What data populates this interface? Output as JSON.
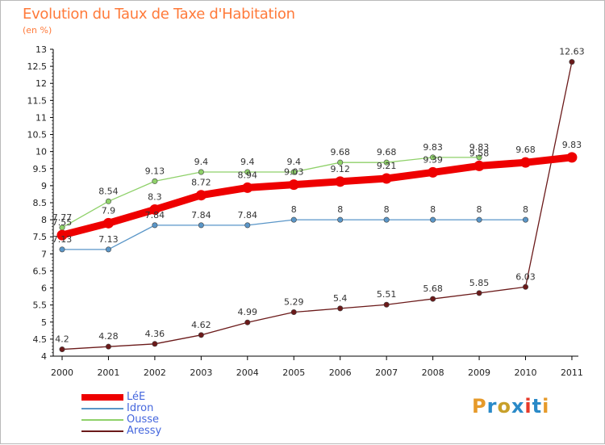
{
  "chart_data": {
    "type": "line",
    "title": "Evolution du Taux de Taxe d'Habitation",
    "subtitle": "(en %)",
    "xlabel": "",
    "ylabel": "",
    "categories": [
      "2000",
      "2001",
      "2002",
      "2003",
      "2004",
      "2005",
      "2006",
      "2007",
      "2008",
      "2009",
      "2010",
      "2011"
    ],
    "ylim": [
      4,
      13
    ],
    "yticks": [
      "4",
      "4.5",
      "5",
      "5.5",
      "6",
      "6.5",
      "7",
      "7.5",
      "8",
      "8.5",
      "9",
      "9.5",
      "10",
      "10.5",
      "11",
      "11.5",
      "12",
      "12.5",
      "13"
    ],
    "grid": false,
    "legend_position": "bottom-left",
    "series": [
      {
        "name": "Aressy",
        "color": "#6b1a1a",
        "values": [
          4.2,
          4.28,
          4.36,
          4.62,
          4.99,
          5.29,
          5.4,
          5.51,
          5.68,
          5.85,
          6.03,
          12.63
        ],
        "labels": [
          "4.2",
          "4.28",
          "4.36",
          "4.62",
          "4.99",
          "5.29",
          "5.4",
          "5.51",
          "5.68",
          "5.85",
          "6.03",
          "12.63"
        ]
      },
      {
        "name": "Idron",
        "color": "#5a96c8",
        "values": [
          7.13,
          7.13,
          7.84,
          7.84,
          7.84,
          8,
          8,
          8,
          8,
          8,
          8,
          null
        ],
        "labels": [
          "7.13",
          "7.13",
          "7.84",
          "7.84",
          "7.84",
          "8",
          "8",
          "8",
          "8",
          "8",
          "8",
          ""
        ]
      },
      {
        "name": "Ousse",
        "color": "#8fd16a",
        "values": [
          7.77,
          8.54,
          9.13,
          9.4,
          9.4,
          9.4,
          9.68,
          9.68,
          9.83,
          9.83,
          null,
          null
        ],
        "labels": [
          "7.77",
          "8.54",
          "9.13",
          "9.4",
          "9.4",
          "9.4",
          "9.68",
          "9.68",
          "9.83",
          "9.83",
          "",
          ""
        ]
      },
      {
        "name": "LéE",
        "color": "#ee0000",
        "values": [
          7.55,
          7.9,
          8.3,
          8.72,
          8.94,
          9.03,
          9.12,
          9.21,
          9.39,
          9.58,
          9.68,
          9.83
        ],
        "labels": [
          "7.55",
          "7.9",
          "8.3",
          "8.72",
          "8.94",
          "9.03",
          "9.12",
          "9.21",
          "9.39",
          "9.58",
          "9.68",
          "9.83"
        ]
      }
    ]
  },
  "legend": [
    {
      "label": "LéE",
      "color": "#ee0000"
    },
    {
      "label": "Idron",
      "color": "#5a96c8"
    },
    {
      "label": "Ousse",
      "color": "#8fd16a"
    },
    {
      "label": "Aressy",
      "color": "#6b1a1a"
    }
  ],
  "brand": {
    "text": "Proxiti",
    "colors": [
      "#e69a2a",
      "#2a8ac8",
      "#c8a02a",
      "#2a8ac8",
      "#e63a2a",
      "#2a8ac8",
      "#e69a2a"
    ]
  }
}
